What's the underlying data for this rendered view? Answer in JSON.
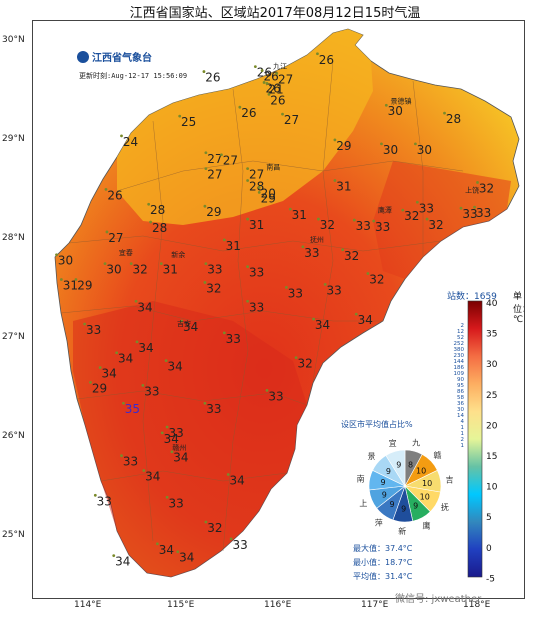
{
  "title": "江西省国家站、区域站2017年08月12日15时气温",
  "logo_text": "江西省气象台",
  "update_time": "更新时刻:Aug-12-17 15:56:09",
  "lat_labels": [
    "30°N",
    "29°N",
    "28°N",
    "27°N",
    "26°N",
    "25°N"
  ],
  "lon_labels": [
    "114°E",
    "115°E",
    "116°E",
    "117°E",
    "118°E"
  ],
  "station_count": "站数：1659",
  "unit_label": "单位：℃",
  "colorbar_ticks": [
    "40",
    "35",
    "30",
    "25",
    "20",
    "15",
    "10",
    "5",
    "0",
    "-5"
  ],
  "colorbar_side_labels": [
    "2",
    "12",
    "52",
    "252",
    "380",
    "230",
    "144",
    "186",
    "109",
    "90",
    "95",
    "86",
    "58",
    "36",
    "30",
    "14",
    "4",
    "1",
    "1",
    "2",
    "1"
  ],
  "pie": {
    "title": "设区市平均值占比%",
    "labels": [
      {
        "text": "九",
        "color": "#333333"
      },
      {
        "text": "赣",
        "color": "#333333"
      },
      {
        "text": "吉",
        "color": "#333333"
      },
      {
        "text": "抚",
        "color": "#333333"
      },
      {
        "text": "鹰",
        "color": "#333333"
      },
      {
        "text": "新",
        "color": "#333333"
      },
      {
        "text": "萍",
        "color": "#333333"
      },
      {
        "text": "上",
        "color": "#333333"
      },
      {
        "text": "南",
        "color": "#333333"
      },
      {
        "text": "景",
        "color": "#333333"
      },
      {
        "text": "宜",
        "color": "#333333"
      }
    ],
    "slices": [
      {
        "value": 8,
        "color": "#7f7f7f"
      },
      {
        "value": 10,
        "color": "#f39c12"
      },
      {
        "value": 10,
        "color": "#f7dc6f"
      },
      {
        "value": 10,
        "color": "#ffd966"
      },
      {
        "value": 9,
        "color": "#27ae60"
      },
      {
        "value": 9,
        "color": "#1f4e9c"
      },
      {
        "value": 9,
        "color": "#3a78c2"
      },
      {
        "value": 9,
        "color": "#4fa3e0"
      },
      {
        "value": 9,
        "color": "#62b6ef"
      },
      {
        "value": 9,
        "color": "#a9d8f5"
      },
      {
        "value": 9,
        "color": "#d6edf9"
      }
    ]
  },
  "stats": {
    "max": "最大值：37.4°C",
    "min": "最小值：18.7°C",
    "avg": "平均值：31.4°C"
  },
  "footer": "微信号: jxweather",
  "temperature_labels": [
    {
      "t": "26",
      "lon": 115.88,
      "lat": 29.62
    },
    {
      "t": "26",
      "lon": 115.35,
      "lat": 29.57
    },
    {
      "t": "26",
      "lon": 115.95,
      "lat": 29.58
    },
    {
      "t": "27",
      "lon": 116.1,
      "lat": 29.55
    },
    {
      "t": "26",
      "lon": 116.52,
      "lat": 29.75
    },
    {
      "t": "26",
      "lon": 115.97,
      "lat": 29.46
    },
    {
      "t": "21",
      "lon": 116.0,
      "lat": 29.45
    },
    {
      "t": "26",
      "lon": 116.02,
      "lat": 29.34
    },
    {
      "t": "25",
      "lon": 115.1,
      "lat": 29.12
    },
    {
      "t": "26",
      "lon": 115.72,
      "lat": 29.21
    },
    {
      "t": "27",
      "lon": 116.16,
      "lat": 29.14
    },
    {
      "t": "30",
      "lon": 117.23,
      "lat": 29.23
    },
    {
      "t": "28",
      "lon": 117.83,
      "lat": 29.15
    },
    {
      "t": "24",
      "lon": 114.5,
      "lat": 28.92
    },
    {
      "t": "29",
      "lon": 116.7,
      "lat": 28.88
    },
    {
      "t": "30",
      "lon": 117.18,
      "lat": 28.84
    },
    {
      "t": "30",
      "lon": 117.53,
      "lat": 28.84
    },
    {
      "t": "27",
      "lon": 115.37,
      "lat": 28.75
    },
    {
      "t": "27",
      "lon": 115.53,
      "lat": 28.73
    },
    {
      "t": "27",
      "lon": 115.8,
      "lat": 28.59
    },
    {
      "t": "27",
      "lon": 115.37,
      "lat": 28.59
    },
    {
      "t": "28",
      "lon": 115.8,
      "lat": 28.47
    },
    {
      "t": "26",
      "lon": 114.34,
      "lat": 28.38
    },
    {
      "t": "31",
      "lon": 116.7,
      "lat": 28.47
    },
    {
      "t": "20",
      "lon": 115.92,
      "lat": 28.4
    },
    {
      "t": "29",
      "lon": 115.92,
      "lat": 28.35
    },
    {
      "t": "32",
      "lon": 118.17,
      "lat": 28.45
    },
    {
      "t": "28",
      "lon": 114.78,
      "lat": 28.23
    },
    {
      "t": "29",
      "lon": 115.36,
      "lat": 28.21
    },
    {
      "t": "31",
      "lon": 116.24,
      "lat": 28.18
    },
    {
      "t": "33",
      "lon": 117.55,
      "lat": 28.25
    },
    {
      "t": "32",
      "lon": 117.4,
      "lat": 28.17
    },
    {
      "t": "33",
      "lon": 118.0,
      "lat": 28.19
    },
    {
      "t": "33",
      "lon": 118.14,
      "lat": 28.2
    },
    {
      "t": "31",
      "lon": 115.8,
      "lat": 28.08
    },
    {
      "t": "32",
      "lon": 116.53,
      "lat": 28.08
    },
    {
      "t": "33",
      "lon": 116.9,
      "lat": 28.07
    },
    {
      "t": "33",
      "lon": 117.1,
      "lat": 28.06
    },
    {
      "t": "32",
      "lon": 117.65,
      "lat": 28.08
    },
    {
      "t": "28",
      "lon": 114.8,
      "lat": 28.05
    },
    {
      "t": "27",
      "lon": 114.35,
      "lat": 27.95
    },
    {
      "t": "31",
      "lon": 115.56,
      "lat": 27.87
    },
    {
      "t": "33",
      "lon": 116.37,
      "lat": 27.8
    },
    {
      "t": "32",
      "lon": 116.78,
      "lat": 27.77
    },
    {
      "t": "30",
      "lon": 113.83,
      "lat": 27.72
    },
    {
      "t": "30",
      "lon": 114.33,
      "lat": 27.63
    },
    {
      "t": "32",
      "lon": 114.6,
      "lat": 27.63
    },
    {
      "t": "31",
      "lon": 114.91,
      "lat": 27.63
    },
    {
      "t": "33",
      "lon": 115.37,
      "lat": 27.63
    },
    {
      "t": "33",
      "lon": 115.8,
      "lat": 27.6
    },
    {
      "t": "32",
      "lon": 117.04,
      "lat": 27.53
    },
    {
      "t": "31",
      "lon": 113.88,
      "lat": 27.47
    },
    {
      "t": "29",
      "lon": 114.03,
      "lat": 27.47
    },
    {
      "t": "32",
      "lon": 115.36,
      "lat": 27.44
    },
    {
      "t": "33",
      "lon": 116.6,
      "lat": 27.42
    },
    {
      "t": "33",
      "lon": 116.2,
      "lat": 27.39
    },
    {
      "t": "34",
      "lon": 114.65,
      "lat": 27.25
    },
    {
      "t": "33",
      "lon": 115.8,
      "lat": 27.25
    },
    {
      "t": "34",
      "lon": 116.92,
      "lat": 27.12
    },
    {
      "t": "33",
      "lon": 114.12,
      "lat": 27.02
    },
    {
      "t": "34",
      "lon": 115.12,
      "lat": 27.05
    },
    {
      "t": "34",
      "lon": 116.48,
      "lat": 27.07
    },
    {
      "t": "33",
      "lon": 115.56,
      "lat": 26.93
    },
    {
      "t": "34",
      "lon": 114.66,
      "lat": 26.84
    },
    {
      "t": "34",
      "lon": 114.45,
      "lat": 26.73
    },
    {
      "t": "34",
      "lon": 114.28,
      "lat": 26.58
    },
    {
      "t": "34",
      "lon": 114.96,
      "lat": 26.65
    },
    {
      "t": "32",
      "lon": 116.3,
      "lat": 26.68
    },
    {
      "t": "29",
      "lon": 114.18,
      "lat": 26.43
    },
    {
      "t": "33",
      "lon": 114.72,
      "lat": 26.4
    },
    {
      "t": "33",
      "lon": 116.0,
      "lat": 26.35
    },
    {
      "t": "35",
      "lon": 114.52,
      "lat": 26.22
    },
    {
      "t": "33",
      "lon": 115.36,
      "lat": 26.22
    },
    {
      "t": "33",
      "lon": 114.97,
      "lat": 25.98
    },
    {
      "t": "34",
      "lon": 114.92,
      "lat": 25.92
    },
    {
      "t": "34",
      "lon": 115.02,
      "lat": 25.73
    },
    {
      "t": "33",
      "lon": 114.5,
      "lat": 25.69
    },
    {
      "t": "34",
      "lon": 114.73,
      "lat": 25.54
    },
    {
      "t": "34",
      "lon": 115.6,
      "lat": 25.5
    },
    {
      "t": "33",
      "lon": 114.23,
      "lat": 25.29
    },
    {
      "t": "33",
      "lon": 114.97,
      "lat": 25.27
    },
    {
      "t": "32",
      "lon": 115.37,
      "lat": 25.02
    },
    {
      "t": "33",
      "lon": 115.63,
      "lat": 24.85
    },
    {
      "t": "34",
      "lon": 114.87,
      "lat": 24.8
    },
    {
      "t": "34",
      "lon": 115.08,
      "lat": 24.72
    },
    {
      "t": "34",
      "lon": 114.42,
      "lat": 24.68
    }
  ],
  "place_names": [
    {
      "t": "九江",
      "lon": 115.97,
      "lat": 29.7
    },
    {
      "t": "景德镇",
      "lon": 117.18,
      "lat": 29.35
    },
    {
      "t": "南昌",
      "lon": 115.9,
      "lat": 28.68
    },
    {
      "t": "上饶",
      "lon": 117.95,
      "lat": 28.45
    },
    {
      "t": "鹰潭",
      "lon": 117.05,
      "lat": 28.25
    },
    {
      "t": "抚州",
      "lon": 116.35,
      "lat": 27.95
    },
    {
      "t": "宜春",
      "lon": 114.38,
      "lat": 27.82
    },
    {
      "t": "新余",
      "lon": 114.92,
      "lat": 27.8
    },
    {
      "t": "吉安",
      "lon": 114.98,
      "lat": 27.1
    },
    {
      "t": "赣州",
      "lon": 114.93,
      "lat": 25.85
    }
  ]
}
